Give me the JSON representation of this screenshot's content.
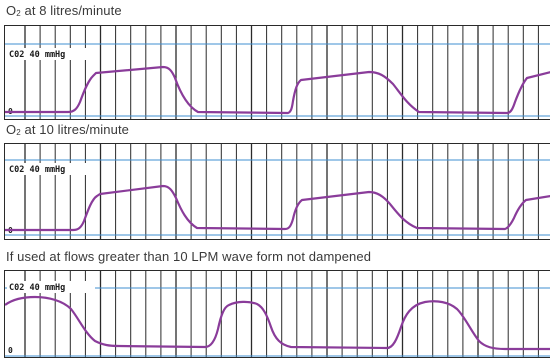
{
  "panels": [
    {
      "caption_prefix": "O",
      "caption_sub": "2",
      "caption_rest": " at 8 litres/minute",
      "scale_label": "C02  40 mmHg",
      "zero_label": "0"
    },
    {
      "caption_prefix": "O",
      "caption_sub": "2",
      "caption_rest": " at 10 litres/minute",
      "scale_label": "C02  40 mmHg",
      "zero_label": "0"
    },
    {
      "caption_prefix": "If used at flows greater than 10 LPM wave form not dampened",
      "caption_sub": "",
      "caption_rest": "",
      "scale_label": "C02  40 mmHg",
      "zero_label": "0"
    }
  ],
  "colors": {
    "waveform": "#8a3c9a",
    "gridline_blue": "#3f8fd0",
    "vertical_grid": "#2a2a2a",
    "border": "#2a2a2a",
    "caption_text": "#3a3a3a"
  }
}
